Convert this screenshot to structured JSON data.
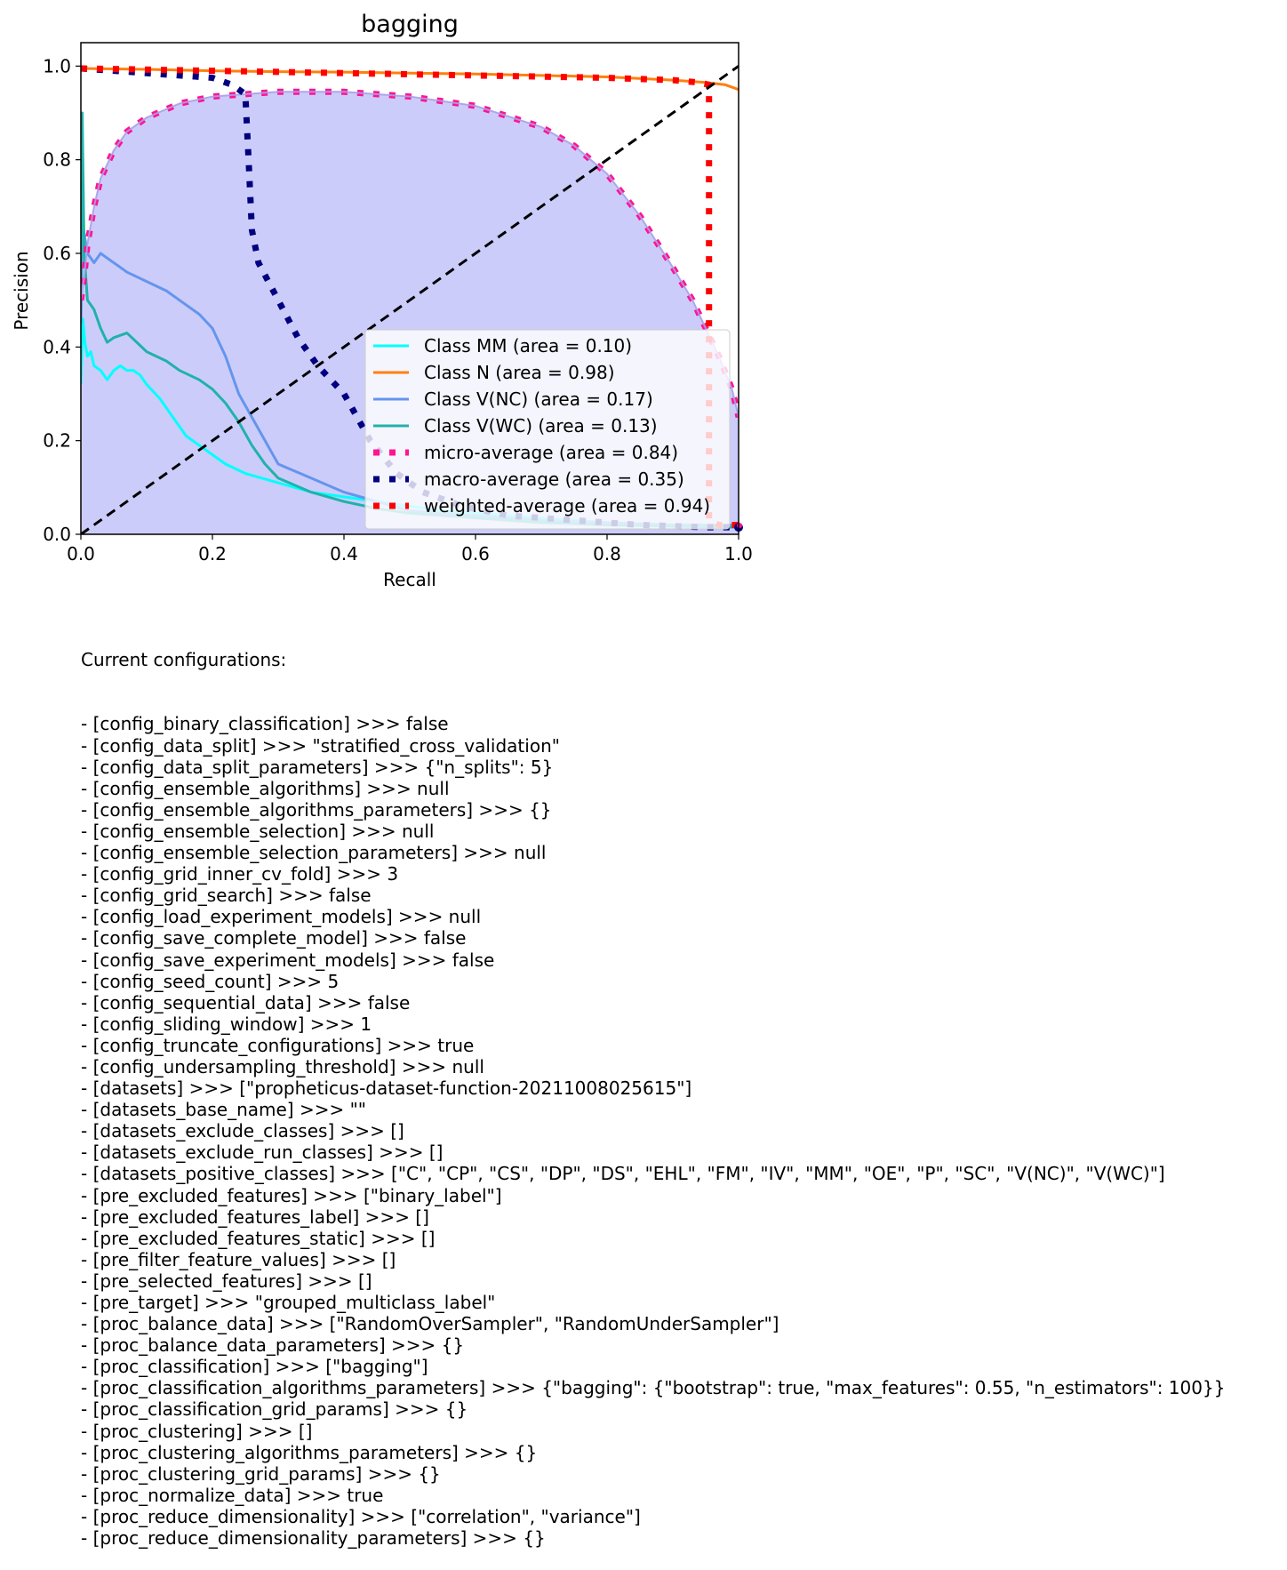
{
  "chart_data": {
    "type": "line",
    "title": "bagging",
    "xlabel": "Recall",
    "ylabel": "Precision",
    "xlim": [
      0.0,
      1.0
    ],
    "ylim": [
      0.0,
      1.05
    ],
    "xticks": [
      "0.0",
      "0.2",
      "0.4",
      "0.6",
      "0.8",
      "1.0"
    ],
    "yticks": [
      "0.0",
      "0.2",
      "0.4",
      "0.6",
      "0.8",
      "1.0"
    ],
    "grid": false,
    "legend_position": "lower-right",
    "fill_color": "#ccccfa",
    "reference_line": {
      "x": [
        0,
        1
      ],
      "y": [
        0,
        1
      ],
      "color": "#000000",
      "style": "dashed"
    },
    "series": [
      {
        "name": "Class MM (area = 0.10)",
        "color": "#00ffff",
        "style": "solid",
        "x": [
          0.0,
          0.003,
          0.006,
          0.01,
          0.015,
          0.02,
          0.03,
          0.04,
          0.05,
          0.06,
          0.07,
          0.08,
          0.09,
          0.1,
          0.12,
          0.14,
          0.16,
          0.18,
          0.2,
          0.22,
          0.25,
          0.3,
          0.35,
          0.4,
          0.45,
          0.5,
          0.55,
          0.6,
          0.7,
          0.8,
          0.9,
          1.0
        ],
        "y": [
          0.32,
          0.46,
          0.41,
          0.38,
          0.39,
          0.36,
          0.35,
          0.33,
          0.35,
          0.36,
          0.35,
          0.35,
          0.34,
          0.32,
          0.29,
          0.25,
          0.21,
          0.19,
          0.17,
          0.15,
          0.13,
          0.11,
          0.09,
          0.08,
          0.07,
          0.06,
          0.05,
          0.045,
          0.035,
          0.025,
          0.02,
          0.015
        ]
      },
      {
        "name": "Class N (area = 0.98)",
        "color": "#ff7f0e",
        "style": "solid",
        "x": [
          0.0,
          0.1,
          0.2,
          0.3,
          0.4,
          0.5,
          0.6,
          0.7,
          0.8,
          0.9,
          0.95,
          0.98,
          1.0
        ],
        "y": [
          0.995,
          0.993,
          0.99,
          0.988,
          0.987,
          0.985,
          0.983,
          0.98,
          0.977,
          0.97,
          0.965,
          0.96,
          0.95
        ]
      },
      {
        "name": "Class V(NC) (area = 0.17)",
        "color": "#6495ed",
        "style": "solid",
        "x": [
          0.0,
          0.003,
          0.01,
          0.02,
          0.03,
          0.05,
          0.07,
          0.1,
          0.13,
          0.15,
          0.18,
          0.2,
          0.22,
          0.24,
          0.26,
          0.28,
          0.3,
          0.35,
          0.4,
          0.45,
          0.5,
          0.6,
          0.7,
          0.8,
          0.9,
          1.0
        ],
        "y": [
          0.45,
          0.66,
          0.6,
          0.58,
          0.6,
          0.58,
          0.56,
          0.54,
          0.52,
          0.5,
          0.47,
          0.44,
          0.38,
          0.3,
          0.25,
          0.2,
          0.15,
          0.12,
          0.09,
          0.07,
          0.05,
          0.04,
          0.03,
          0.025,
          0.02,
          0.02
        ]
      },
      {
        "name": "Class V(WC) (area = 0.13)",
        "color": "#20b2aa",
        "style": "solid",
        "x": [
          0.0,
          0.002,
          0.005,
          0.01,
          0.02,
          0.03,
          0.04,
          0.05,
          0.07,
          0.1,
          0.13,
          0.15,
          0.18,
          0.2,
          0.22,
          0.24,
          0.26,
          0.28,
          0.3,
          0.35,
          0.4,
          0.45,
          0.5,
          0.6,
          0.7,
          0.8,
          0.9,
          1.0
        ],
        "y": [
          0.55,
          0.9,
          0.6,
          0.5,
          0.48,
          0.44,
          0.41,
          0.42,
          0.43,
          0.39,
          0.37,
          0.35,
          0.33,
          0.31,
          0.28,
          0.24,
          0.19,
          0.15,
          0.12,
          0.09,
          0.07,
          0.055,
          0.045,
          0.035,
          0.025,
          0.02,
          0.017,
          0.015
        ]
      },
      {
        "name": "micro-average (area = 0.84)",
        "color": "#ff1493",
        "style": "dotted",
        "fill": true,
        "x": [
          0.0,
          0.005,
          0.01,
          0.02,
          0.03,
          0.05,
          0.07,
          0.1,
          0.15,
          0.2,
          0.3,
          0.4,
          0.5,
          0.6,
          0.7,
          0.75,
          0.8,
          0.85,
          0.9,
          0.93,
          0.95,
          0.97,
          0.99,
          1.0
        ],
        "y": [
          0.5,
          0.55,
          0.62,
          0.7,
          0.76,
          0.82,
          0.86,
          0.89,
          0.92,
          0.935,
          0.945,
          0.945,
          0.935,
          0.915,
          0.87,
          0.83,
          0.77,
          0.68,
          0.57,
          0.5,
          0.44,
          0.38,
          0.31,
          0.25
        ]
      },
      {
        "name": "macro-average (area = 0.35)",
        "color": "#000080",
        "style": "dotted",
        "x": [
          0.0,
          0.05,
          0.1,
          0.15,
          0.2,
          0.23,
          0.25,
          0.255,
          0.26,
          0.27,
          0.3,
          0.33,
          0.36,
          0.4,
          0.44,
          0.48,
          0.52,
          0.58,
          0.65,
          0.75,
          0.85,
          0.95,
          1.0
        ],
        "y": [
          0.995,
          0.99,
          0.985,
          0.98,
          0.975,
          0.96,
          0.94,
          0.8,
          0.65,
          0.58,
          0.5,
          0.42,
          0.36,
          0.3,
          0.2,
          0.13,
          0.09,
          0.06,
          0.04,
          0.03,
          0.02,
          0.015,
          0.015
        ]
      },
      {
        "name": "weighted-average (area = 0.94)",
        "color": "#ff0000",
        "style": "dotted",
        "x": [
          0.0,
          0.2,
          0.4,
          0.6,
          0.8,
          0.9,
          0.94,
          0.955,
          0.955,
          0.955,
          0.97,
          1.0
        ],
        "y": [
          0.995,
          0.99,
          0.985,
          0.98,
          0.975,
          0.97,
          0.965,
          0.96,
          0.5,
          0.03,
          0.02,
          0.02
        ]
      }
    ]
  },
  "config": {
    "heading": "Current configurations:",
    "lines": [
      "- [config_binary_classification] >>> false",
      "- [config_data_split] >>> \"stratified_cross_validation\"",
      "- [config_data_split_parameters] >>> {\"n_splits\": 5}",
      "- [config_ensemble_algorithms] >>> null",
      "- [config_ensemble_algorithms_parameters] >>> {}",
      "- [config_ensemble_selection] >>> null",
      "- [config_ensemble_selection_parameters] >>> null",
      "- [config_grid_inner_cv_fold] >>> 3",
      "- [config_grid_search] >>> false",
      "- [config_load_experiment_models] >>> null",
      "- [config_save_complete_model] >>> false",
      "- [config_save_experiment_models] >>> false",
      "- [config_seed_count] >>> 5",
      "- [config_sequential_data] >>> false",
      "- [config_sliding_window] >>> 1",
      "- [config_truncate_configurations] >>> true",
      "- [config_undersampling_threshold] >>> null",
      "- [datasets] >>> [\"propheticus-dataset-function-20211008025615\"]",
      "- [datasets_base_name] >>> \"\"",
      "- [datasets_exclude_classes] >>> []",
      "- [datasets_exclude_run_classes] >>> []",
      "- [datasets_positive_classes] >>> [\"C\", \"CP\", \"CS\", \"DP\", \"DS\", \"EHL\", \"FM\", \"IV\", \"MM\", \"OE\", \"P\", \"SC\", \"V(NC)\", \"V(WC)\"]",
      "- [pre_excluded_features] >>> [\"binary_label\"]",
      "- [pre_excluded_features_label] >>> []",
      "- [pre_excluded_features_static] >>> []",
      "- [pre_filter_feature_values] >>> []",
      "- [pre_selected_features] >>> []",
      "- [pre_target] >>> \"grouped_multiclass_label\"",
      "- [proc_balance_data] >>> [\"RandomOverSampler\", \"RandomUnderSampler\"]",
      "- [proc_balance_data_parameters] >>> {}",
      "- [proc_classification] >>> [\"bagging\"]",
      "- [proc_classification_algorithms_parameters] >>> {\"bagging\": {\"bootstrap\": true, \"max_features\": 0.55, \"n_estimators\": 100}}",
      "- [proc_classification_grid_params] >>> {}",
      "- [proc_clustering] >>> []",
      "- [proc_clustering_algorithms_parameters] >>> {}",
      "- [proc_clustering_grid_params] >>> {}",
      "- [proc_normalize_data] >>> true",
      "- [proc_reduce_dimensionality] >>> [\"correlation\", \"variance\"]",
      "- [proc_reduce_dimensionality_parameters] >>> {}"
    ]
  }
}
